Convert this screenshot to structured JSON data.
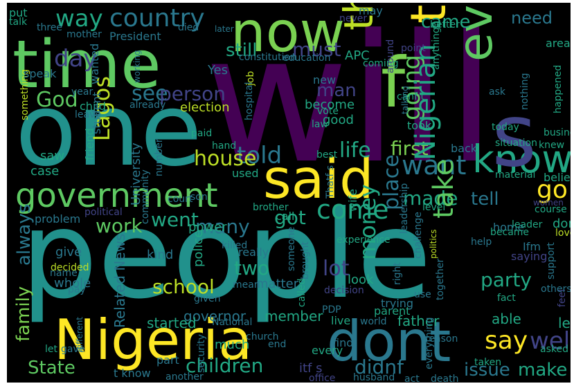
{
  "cloud": {
    "words": [
      {
        "text": "will",
        "color": "#440154"
      },
      {
        "text": "people",
        "color": "#21918c"
      },
      {
        "text": "one",
        "color": "#21918c"
      },
      {
        "text": "time",
        "color": "#5ec962"
      },
      {
        "text": "now",
        "color": "#7ad151"
      },
      {
        "text": "Nigeria",
        "color": "#fde725"
      },
      {
        "text": "don",
        "color": "#2a788e"
      },
      {
        "text": "t",
        "color": "#2a788e"
      },
      {
        "text": "government",
        "color": "#5ec962"
      },
      {
        "text": "said",
        "color": "#fde725"
      },
      {
        "text": "know",
        "color": "#22a884"
      },
      {
        "text": "thing",
        "color": "#fde725"
      },
      {
        "text": "think",
        "color": "#bddf26"
      },
      {
        "text": "even",
        "color": "#5ec962"
      },
      {
        "text": "s",
        "color": "#414487"
      },
      {
        "text": "f",
        "color": "#7ad151"
      },
      {
        "text": "country",
        "color": "#2a788e"
      },
      {
        "text": "way",
        "color": "#22a884"
      },
      {
        "text": "want",
        "color": "#2a788e"
      },
      {
        "text": "told",
        "color": "#2a788e"
      },
      {
        "text": "go",
        "color": "#fde725"
      },
      {
        "text": "came",
        "color": "#22a884"
      },
      {
        "text": "need",
        "color": "#2a788e"
      },
      {
        "text": "going",
        "color": "#5ec962"
      },
      {
        "text": "see",
        "color": "#2a788e"
      },
      {
        "text": "person",
        "color": "#414487"
      },
      {
        "text": "day",
        "color": "#414487"
      },
      {
        "text": "God",
        "color": "#5ec962"
      },
      {
        "text": "still",
        "color": "#22a884"
      },
      {
        "text": "must",
        "color": "#414487"
      },
      {
        "text": "man",
        "color": "#414487"
      },
      {
        "text": "life",
        "color": "#22a884"
      },
      {
        "text": "first",
        "color": "#7ad151"
      },
      {
        "text": "house",
        "color": "#bddf26"
      },
      {
        "text": "Lagos",
        "color": "#bddf26"
      },
      {
        "text": "come",
        "color": "#22a884"
      },
      {
        "text": "made",
        "color": "#22a884"
      },
      {
        "text": "Nigerian",
        "color": "#22a884"
      },
      {
        "text": "tell",
        "color": "#2a788e"
      },
      {
        "text": "place",
        "color": "#2a788e"
      },
      {
        "text": "take",
        "color": "#5ec962"
      },
      {
        "text": "money",
        "color": "#22a884"
      },
      {
        "text": "say",
        "color": "#fde725"
      },
      {
        "text": "well",
        "color": "#414487"
      },
      {
        "text": "work",
        "color": "#5ec962"
      },
      {
        "text": "went",
        "color": "#22a884"
      },
      {
        "text": "got",
        "color": "#22a884"
      },
      {
        "text": "many",
        "color": "#2a788e"
      },
      {
        "text": "school",
        "color": "#bddf26"
      },
      {
        "text": "two",
        "color": "#22a884"
      },
      {
        "text": "lot",
        "color": "#414487"
      },
      {
        "text": "party",
        "color": "#22a884"
      },
      {
        "text": "family",
        "color": "#7ad151"
      },
      {
        "text": "always",
        "color": "#2a788e"
      },
      {
        "text": "State",
        "color": "#5ec962"
      },
      {
        "text": "children",
        "color": "#22a884"
      },
      {
        "text": "issue",
        "color": "#2a788e"
      },
      {
        "text": "make",
        "color": "#22a884"
      },
      {
        "text": "didnf",
        "color": "#2a788e"
      },
      {
        "text": "President",
        "color": "#2a788e"
      },
      {
        "text": "APC",
        "color": "#22a884"
      },
      {
        "text": "election",
        "color": "#bddf26"
      },
      {
        "text": "University",
        "color": "#2a788e"
      },
      {
        "text": "Related News",
        "color": "#2a788e"
      },
      {
        "text": "governor",
        "color": "#2a788e"
      },
      {
        "text": "member",
        "color": "#22a884"
      },
      {
        "text": "father",
        "color": "#22a884"
      },
      {
        "text": "left",
        "color": "#22a884"
      },
      {
        "text": "able",
        "color": "#22a884"
      },
      {
        "text": "matter",
        "color": "#2a788e"
      },
      {
        "text": "police",
        "color": "#22a884"
      },
      {
        "text": "started",
        "color": "#22a884"
      },
      {
        "text": "kind",
        "color": "#2a788e"
      },
      {
        "text": "whole",
        "color": "#2a788e"
      },
      {
        "text": "give",
        "color": "#2a788e"
      },
      {
        "text": "problem",
        "color": "#2a788e"
      },
      {
        "text": "power",
        "color": "#22a884"
      },
      {
        "text": "believe",
        "color": "#22a884"
      },
      {
        "text": "home",
        "color": "#2a788e"
      },
      {
        "text": "done",
        "color": "#22a884"
      },
      {
        "text": "leader",
        "color": "#22a884"
      },
      {
        "text": "course",
        "color": "#22a884"
      },
      {
        "text": "back",
        "color": "#2a788e"
      },
      {
        "text": "took",
        "color": "#22a884"
      },
      {
        "text": "become",
        "color": "#22a884"
      },
      {
        "text": "good",
        "color": "#22a884"
      },
      {
        "text": "new",
        "color": "#2a788e"
      },
      {
        "text": "case",
        "color": "#22a884"
      },
      {
        "text": "saw",
        "color": "#22a884"
      },
      {
        "text": "child",
        "color": "#22a884"
      },
      {
        "text": "year",
        "color": "#2a788e"
      },
      {
        "text": "Yes",
        "color": "#2a788e"
      },
      {
        "text": "wanted",
        "color": "#2a788e"
      },
      {
        "text": "student",
        "color": "#2a788e"
      },
      {
        "text": "friend",
        "color": "#22a884"
      },
      {
        "text": "something",
        "color": "#bddf26"
      },
      {
        "text": "used",
        "color": "#22a884"
      },
      {
        "text": "wife",
        "color": "#22a884"
      },
      {
        "text": "much",
        "color": "#22a884"
      },
      {
        "text": "part",
        "color": "#2a788e"
      },
      {
        "text": "t know",
        "color": "#2a788e"
      },
      {
        "text": "another",
        "color": "#2a788e"
      },
      {
        "text": "area",
        "color": "#22a884"
      },
      {
        "text": "happened",
        "color": "#22a884"
      },
      {
        "text": "business",
        "color": "#22a884"
      },
      {
        "text": "situation",
        "color": "#22a884"
      },
      {
        "text": "look",
        "color": "#22a884"
      },
      {
        "text": "called",
        "color": "#22a884"
      },
      {
        "text": "experience",
        "color": "#22a884"
      },
      {
        "text": "call",
        "color": "#22a884"
      },
      {
        "text": "Ifm",
        "color": "#2a788e"
      },
      {
        "text": "asked",
        "color": "#22a884"
      },
      {
        "text": "fact",
        "color": "#22a884"
      },
      {
        "text": "law",
        "color": "#22a884"
      },
      {
        "text": "live",
        "color": "#22a884"
      },
      {
        "text": "parent",
        "color": "#22a884"
      },
      {
        "text": "world",
        "color": "#2a788e"
      },
      {
        "text": "every",
        "color": "#22a884"
      },
      {
        "text": "end",
        "color": "#2a788e"
      },
      {
        "text": "church",
        "color": "#2a788e"
      },
      {
        "text": "National",
        "color": "#2a788e"
      },
      {
        "text": "security",
        "color": "#2a788e"
      },
      {
        "text": "different",
        "color": "#2a788e"
      },
      {
        "text": "gave",
        "color": "#2a788e"
      },
      {
        "text": "let",
        "color": "#22a884"
      },
      {
        "text": "pay",
        "color": "#2a788e"
      },
      {
        "text": "name",
        "color": "#2a788e"
      },
      {
        "text": "decided",
        "color": "#bddf26"
      },
      {
        "text": "political",
        "color": "#414487"
      },
      {
        "text": "killed",
        "color": "#2a788e"
      },
      {
        "text": "brother",
        "color": "#22a884"
      },
      {
        "text": "level",
        "color": "#22a884"
      },
      {
        "text": "women",
        "color": "#414487"
      },
      {
        "text": "love",
        "color": "#bddf26"
      },
      {
        "text": "feel",
        "color": "#414487"
      },
      {
        "text": "support",
        "color": "#2a788e"
      },
      {
        "text": "others",
        "color": "#2a788e"
      },
      {
        "text": "help",
        "color": "#2a788e"
      },
      {
        "text": "saying",
        "color": "#414487"
      },
      {
        "text": "politics",
        "color": "#bddf26"
      },
      {
        "text": "became",
        "color": "#22a884"
      },
      {
        "text": "put",
        "color": "#22a884"
      },
      {
        "text": "talk",
        "color": "#22a884"
      },
      {
        "text": "three",
        "color": "#2a788e"
      },
      {
        "text": "mother",
        "color": "#2a788e"
      },
      {
        "text": "died",
        "color": "#2a788e"
      },
      {
        "text": "later",
        "color": "#2a788e"
      },
      {
        "text": "constitution",
        "color": "#2a788e"
      },
      {
        "text": "education",
        "color": "#2a788e"
      },
      {
        "text": "coming",
        "color": "#22a884"
      },
      {
        "text": "never",
        "color": "#414487"
      },
      {
        "text": "may",
        "color": "#2a788e"
      },
      {
        "text": "better",
        "color": "#22a884"
      },
      {
        "text": "point",
        "color": "#414487"
      },
      {
        "text": "anything",
        "color": "#22a884"
      },
      {
        "text": "around",
        "color": "#414487"
      },
      {
        "text": "job",
        "color": "#bddf26"
      },
      {
        "text": "speak",
        "color": "#2a788e"
      },
      {
        "text": "working",
        "color": "#2a788e"
      },
      {
        "text": "already",
        "color": "#2a788e"
      },
      {
        "text": "leave",
        "color": "#2a788e"
      },
      {
        "text": "hospital",
        "color": "#2a788e"
      },
      {
        "text": "vote",
        "color": "#22a884"
      },
      {
        "text": "canf t",
        "color": "#22a884"
      },
      {
        "text": "talking",
        "color": "#2a788e"
      },
      {
        "text": "nothing",
        "color": "#2a788e"
      },
      {
        "text": "ask",
        "color": "#2a788e"
      },
      {
        "text": "today",
        "color": "#22a884"
      },
      {
        "text": "knew",
        "color": "#22a884"
      },
      {
        "text": "paid",
        "color": "#22a884"
      },
      {
        "text": "hand",
        "color": "#22a884"
      },
      {
        "text": "best",
        "color": "#22a884"
      },
      {
        "text": "Thatf s",
        "color": "#2a788e"
      },
      {
        "text": "leadership",
        "color": "#2a788e"
      },
      {
        "text": "material",
        "color": "#22a884"
      },
      {
        "text": "court",
        "color": "#2a788e"
      },
      {
        "text": "son",
        "color": "#2a788e"
      },
      {
        "text": "number",
        "color": "#2a788e"
      },
      {
        "text": "community",
        "color": "#2a788e"
      },
      {
        "text": "someone",
        "color": "#2a788e"
      },
      {
        "text": "brought",
        "color": "#2a788e"
      },
      {
        "text": "challenge",
        "color": "#2a788e"
      },
      {
        "text": "right",
        "color": "#2a788e"
      },
      {
        "text": "decision",
        "color": "#414487"
      },
      {
        "text": "really",
        "color": "#2a788e"
      },
      {
        "text": "mean",
        "color": "#2a788e"
      },
      {
        "text": "given",
        "color": "#2a788e"
      },
      {
        "text": "PDP",
        "color": "#2a788e"
      },
      {
        "text": "find",
        "color": "#2a788e"
      },
      {
        "text": "trying",
        "color": "#2a788e"
      },
      {
        "text": "use",
        "color": "#2a788e"
      },
      {
        "text": "together",
        "color": "#2a788e"
      },
      {
        "text": "reason",
        "color": "#2a788e"
      },
      {
        "text": "everything",
        "color": "#2a788e"
      },
      {
        "text": "taken",
        "color": "#22a884"
      },
      {
        "text": "itf s",
        "color": "#414487"
      },
      {
        "text": "office",
        "color": "#414487"
      },
      {
        "text": "husband",
        "color": "#2a788e"
      },
      {
        "text": "act",
        "color": "#2a788e"
      },
      {
        "text": "death",
        "color": "#2a788e"
      }
    ]
  }
}
